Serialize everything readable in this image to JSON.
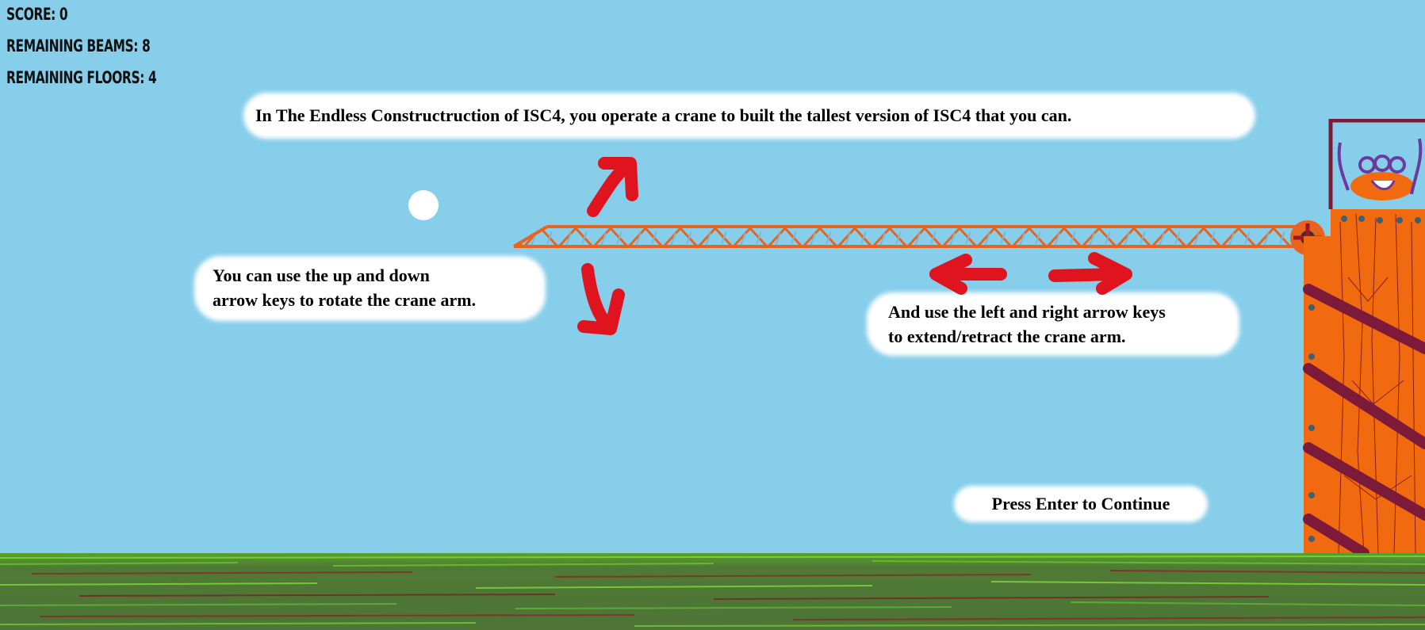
{
  "hud": {
    "score": "SCORE: 0",
    "beams": "REMAINING BEAMS: 8",
    "floors": "REMAINING FLOORS: 4"
  },
  "tutorial": {
    "intro": "In The Endless Constructruction of ISC4, you operate a crane to built the tallest version of ISC4 that you can.",
    "rotate_line1": "You can use the up and down",
    "rotate_line2": "arrow keys to rotate the crane arm.",
    "extend_line1": "And use the left and right arrow keys",
    "extend_line2": "to extend/retract the crane arm.",
    "continue": "Press Enter to Continue"
  },
  "colors": {
    "sky": "#87ceeb",
    "crane": "#e8641e",
    "arrows": "#e0141e",
    "tower": "#f26a10",
    "grass": "#4e7436"
  }
}
